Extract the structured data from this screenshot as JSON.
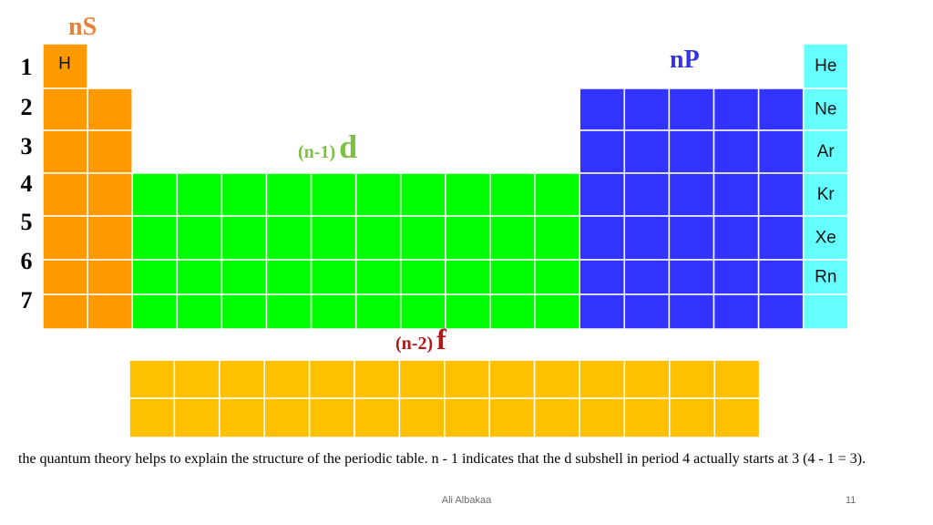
{
  "block_labels": {
    "s": "nS",
    "p": "nP",
    "d_prefix": "(n-1)",
    "d_letter": "d",
    "f_prefix": "(n-2)",
    "f_letter": "f"
  },
  "periods": [
    "1",
    "2",
    "3",
    "4",
    "5",
    "6",
    "7"
  ],
  "elements": {
    "hydrogen": "H",
    "noble_gases": [
      "He",
      "Ne",
      "Ar",
      "Kr",
      "Xe",
      "Rn"
    ]
  },
  "colors": {
    "s_block": "#ff9900",
    "hydrogen": "#ff9900",
    "d_block": "#00ff00",
    "p_block": "#3333ff",
    "noble_gases": "#66ffff",
    "f_block": "#ffc000",
    "grid_line": "#ffffff"
  },
  "caption": "the quantum theory helps to explain the structure of the periodic table. n - 1 indicates that the d subshell in period 4 actually starts at 3 (4 - 1 = 3).",
  "footer": {
    "author": "Ali Albakaa",
    "slide_number": "11"
  }
}
